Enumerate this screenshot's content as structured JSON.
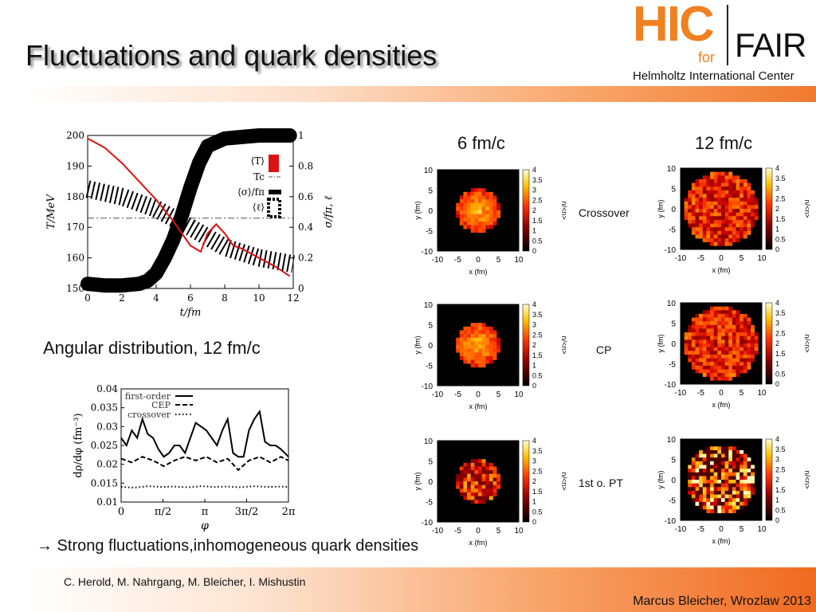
{
  "title": "Fluctuations and quark densities",
  "logo": {
    "hic": "HIC",
    "for": "for",
    "fair": "FAIR",
    "subtitle": "Helmholtz International Center"
  },
  "colors": {
    "accent_orange": "#f07a2e",
    "logo_orange": "#f08020",
    "curve_red": "#dd1111"
  },
  "plot1": {
    "ylabel_left": "T/MeV",
    "ylabel_right": "σ/fπ, ℓ",
    "xlabel": "t/fm",
    "yticks_left": [
      "150",
      "160",
      "170",
      "180",
      "190",
      "200"
    ],
    "yticks_right": [
      "0",
      "0.2",
      "0.4",
      "0.6",
      "0.8",
      "1"
    ],
    "xticks": [
      "0",
      "2",
      "4",
      "6",
      "8",
      "10",
      "12"
    ],
    "legend": [
      "⟨T⟩",
      "Tc",
      "⟨σ⟩/fπ",
      "⟨ℓ⟩"
    ]
  },
  "section_heading": "Angular distribution, 12 fm/c",
  "plot2": {
    "ylabel": "dρ/dφ (fm⁻³)",
    "xlabel": "φ",
    "yticks": [
      "0.01",
      "0.015",
      "0.02",
      "0.025",
      "0.03",
      "0.035",
      "0.04"
    ],
    "xticks": [
      "0",
      "π/2",
      "π",
      "3π/2",
      "2π"
    ],
    "legend": [
      "first-order",
      "CEP",
      "crossover"
    ]
  },
  "heatmaps": {
    "col_headers": [
      "6 fm/c",
      "12 fm/c"
    ],
    "row_labels": [
      "Crossover",
      "CP",
      "1st  o. PT"
    ],
    "xlabel": "x (fm)",
    "ylabel": "y (fm)",
    "colorbar_label": "n/<n>",
    "axis_ticks": [
      "-10",
      "-5",
      "0",
      "5",
      "10"
    ],
    "colorbar_ticks": [
      "0",
      "0.5",
      "1",
      "1.5",
      "2",
      "2.5",
      "3",
      "3.5",
      "4"
    ]
  },
  "chart_data": [
    {
      "type": "line",
      "xlabel": "t/fm",
      "ylabel": "T/MeV",
      "xlim": [
        0,
        12
      ],
      "ylim": [
        150,
        200
      ],
      "y2lim": [
        0,
        1
      ],
      "series": [
        {
          "name": "⟨T⟩",
          "x": [
            0,
            1,
            2,
            3,
            4,
            5,
            6,
            6.6,
            7,
            7.5,
            8,
            8.5,
            9,
            10,
            11,
            11.8
          ],
          "y": [
            199,
            196,
            191,
            185,
            179,
            172,
            164,
            162,
            168,
            171,
            168,
            164,
            163,
            160,
            157,
            154
          ]
        },
        {
          "name": "Tc",
          "x": [
            0,
            12
          ],
          "y": [
            173,
            173
          ]
        },
        {
          "name": "⟨σ⟩/fπ",
          "x": [
            0,
            2,
            4,
            6,
            8,
            10,
            12
          ],
          "y": [
            0.65,
            0.6,
            0.52,
            0.4,
            0.27,
            0.2,
            0.16
          ]
        },
        {
          "name": "⟨ℓ⟩",
          "x": [
            0,
            1,
            2,
            3,
            3.5,
            4,
            4.5,
            5,
            5.5,
            6,
            6.5,
            7,
            8,
            9,
            10,
            11,
            11.8
          ],
          "y": [
            0.03,
            0.02,
            0.02,
            0.03,
            0.05,
            0.1,
            0.2,
            0.32,
            0.48,
            0.66,
            0.82,
            0.93,
            0.98,
            0.99,
            1.0,
            1.0,
            1.0
          ]
        }
      ]
    },
    {
      "type": "line",
      "xlabel": "φ",
      "ylabel": "dρ/dφ (fm⁻³)",
      "xlim": [
        0,
        6.283
      ],
      "ylim": [
        0.01,
        0.04
      ],
      "series": [
        {
          "name": "first-order",
          "x": [
            0,
            0.2,
            0.4,
            0.6,
            0.8,
            1.0,
            1.2,
            1.4,
            1.6,
            1.8,
            2.0,
            2.2,
            2.4,
            2.6,
            2.8,
            3.0,
            3.2,
            3.4,
            3.6,
            3.8,
            4.0,
            4.2,
            4.4,
            4.6,
            4.8,
            5.0,
            5.2,
            5.4,
            5.6,
            5.8,
            6.0,
            6.283
          ],
          "y": [
            0.027,
            0.025,
            0.029,
            0.027,
            0.032,
            0.028,
            0.027,
            0.024,
            0.022,
            0.023,
            0.025,
            0.025,
            0.023,
            0.027,
            0.031,
            0.03,
            0.029,
            0.027,
            0.025,
            0.029,
            0.032,
            0.023,
            0.022,
            0.022,
            0.029,
            0.032,
            0.034,
            0.026,
            0.025,
            0.025,
            0.024,
            0.022
          ]
        },
        {
          "name": "CEP",
          "x": [
            0,
            0.4,
            0.8,
            1.2,
            1.6,
            2.0,
            2.4,
            2.8,
            3.2,
            3.6,
            4.0,
            4.4,
            4.8,
            5.2,
            5.6,
            6.0,
            6.283
          ],
          "y": [
            0.0215,
            0.0205,
            0.022,
            0.021,
            0.0195,
            0.021,
            0.022,
            0.021,
            0.022,
            0.0205,
            0.0215,
            0.0185,
            0.021,
            0.022,
            0.0205,
            0.022,
            0.021
          ]
        },
        {
          "name": "crossover",
          "x": [
            0,
            0.5,
            1.0,
            1.5,
            2.0,
            2.5,
            3.0,
            3.5,
            4.0,
            4.5,
            5.0,
            5.5,
            6.0,
            6.283
          ],
          "y": [
            0.014,
            0.0138,
            0.0142,
            0.014,
            0.0141,
            0.0139,
            0.0142,
            0.014,
            0.0141,
            0.0139,
            0.0142,
            0.014,
            0.0141,
            0.014
          ]
        }
      ]
    },
    {
      "type": "heatmap",
      "xlabel": "x (fm)",
      "ylabel": "y (fm)",
      "xlim": [
        -10,
        10
      ],
      "ylim": [
        -10,
        10
      ],
      "colorbar_range": [
        0,
        4
      ]
    }
  ],
  "slide_text": {
    "conclusion": "→ Strong fluctuations,inhomogeneous quark densities",
    "authors": "C. Herold, M. Nahrgang, M. Bleicher, I. Mishustin",
    "footer": "Marcus Bleicher, Wrozlaw 2013"
  }
}
